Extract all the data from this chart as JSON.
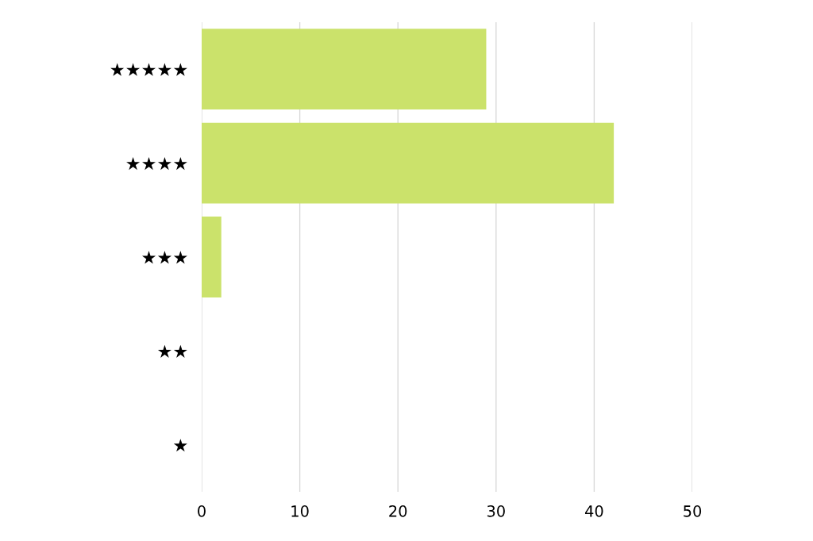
{
  "chart_data": {
    "type": "bar",
    "orientation": "horizontal",
    "categories": [
      "★★★★★",
      "★★★★",
      "★★★",
      "★★",
      "★"
    ],
    "values": [
      29,
      42,
      2,
      0,
      0
    ],
    "color": "#cbe26b",
    "xlim": [
      0,
      50
    ],
    "xticks": [
      0,
      10,
      20,
      30,
      40,
      50
    ],
    "grid": "x"
  }
}
